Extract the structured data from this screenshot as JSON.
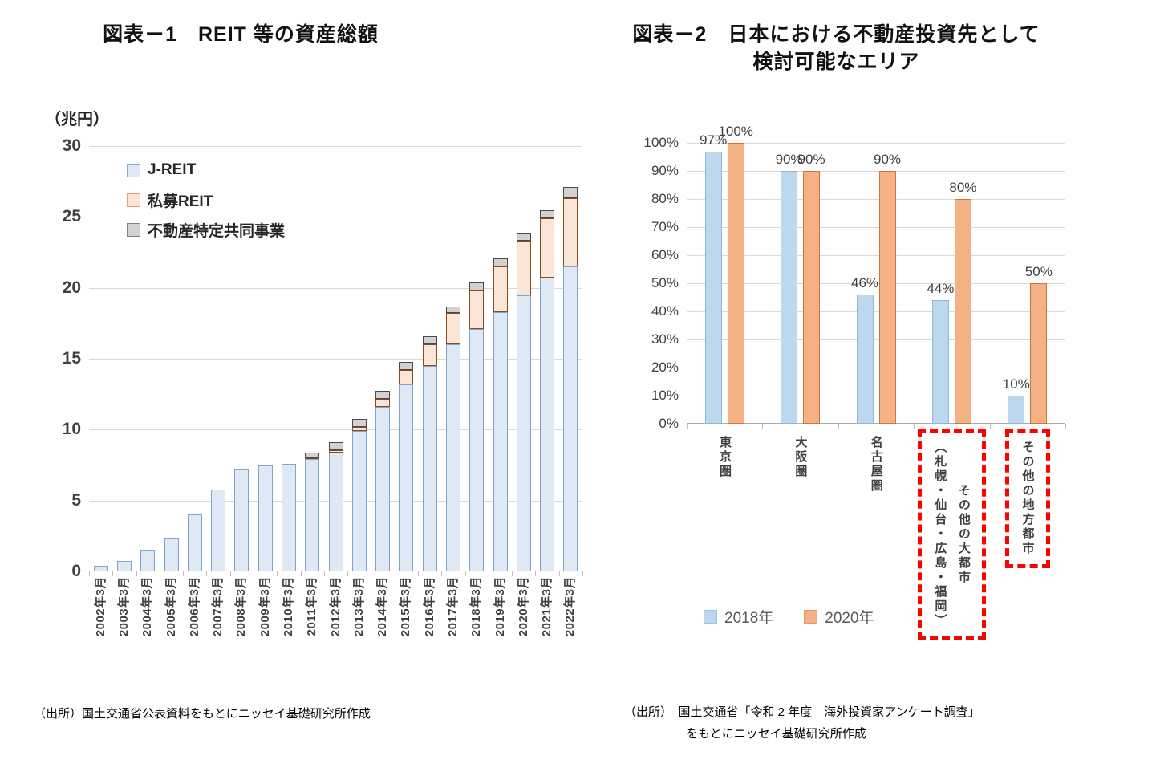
{
  "chart_data": [
    {
      "type": "bar",
      "stacked": true,
      "title": "図表－1　REIT 等の資産総額",
      "unit_label": "（兆円）",
      "categories": [
        "2002年3月",
        "2003年3月",
        "2004年3月",
        "2005年3月",
        "2006年3月",
        "2007年3月",
        "2008年3月",
        "2009年3月",
        "2010年3月",
        "2011年3月",
        "2012年3月",
        "2013年3月",
        "2014年3月",
        "2015年3月",
        "2016年3月",
        "2017年3月",
        "2018年3月",
        "2019年3月",
        "2020年3月",
        "2021年3月",
        "2022年3月"
      ],
      "series": [
        {
          "name": "J-REIT",
          "fill": "#DEE9F5",
          "border": "#7FA5CC",
          "legend_border": "#89A8CC",
          "values": [
            0.4,
            0.75,
            1.55,
            2.3,
            4.0,
            5.8,
            7.2,
            7.5,
            7.6,
            7.9,
            8.4,
            9.9,
            11.6,
            13.2,
            14.5,
            16.0,
            17.1,
            18.3,
            19.5,
            20.7,
            21.5
          ]
        },
        {
          "name": "私募REIT",
          "fill": "#FBE5D6",
          "border": "#8C4A1D",
          "legend_border": "#D9A077",
          "values": [
            0,
            0,
            0,
            0,
            0,
            0,
            0,
            0,
            0,
            0.1,
            0.15,
            0.3,
            0.55,
            1.0,
            1.5,
            2.2,
            2.7,
            3.2,
            3.8,
            4.2,
            4.8
          ]
        },
        {
          "name": "不動産特定共同事業",
          "fill": "#D2D2D2",
          "border": "#4A4A4A",
          "legend_border": "#7F7F7F",
          "values": [
            0,
            0,
            0,
            0,
            0,
            0,
            0,
            0,
            0,
            0.4,
            0.55,
            0.55,
            0.6,
            0.6,
            0.6,
            0.5,
            0.6,
            0.6,
            0.6,
            0.6,
            0.8
          ]
        }
      ],
      "ylim": [
        0,
        30
      ],
      "yticks": [
        0,
        5,
        10,
        15,
        20,
        25,
        30
      ],
      "grid": true,
      "legend_position": "top-left",
      "source": "（出所）国土交通省公表資料をもとにニッセイ基礎研究所作成"
    },
    {
      "type": "bar",
      "grouped": true,
      "title_lines": [
        "図表－2　日本における不動産投資先として",
        "検討可能なエリア"
      ],
      "categories": [
        {
          "lines": [
            "東京圏"
          ],
          "highlighted": false
        },
        {
          "lines": [
            "大阪圏"
          ],
          "highlighted": false
        },
        {
          "lines": [
            "名古屋圏"
          ],
          "highlighted": false
        },
        {
          "lines": [
            "（札幌・仙台・広島・福岡）",
            "その他の大都市"
          ],
          "highlighted": true
        },
        {
          "lines": [
            "その他の地方都市"
          ],
          "highlighted": true
        }
      ],
      "series": [
        {
          "name": "2018年",
          "fill": "#BDD7EE",
          "border": "#8FB8DC",
          "legend_border": "#9DC3E6",
          "values": [
            97,
            90,
            46,
            44,
            10
          ]
        },
        {
          "name": "2020年",
          "fill": "#F4B183",
          "border": "#D2733B",
          "legend_border": "#E8995F",
          "values": [
            100,
            90,
            90,
            80,
            50
          ]
        }
      ],
      "value_label_suffix": "%",
      "ylim": [
        0,
        100
      ],
      "ytick_step": 10,
      "ytick_suffix": "%",
      "grid": true,
      "legend_position": "bottom",
      "highlight_color": "#FF0000",
      "source_lines": [
        "（出所）　国土交通省「令和 2 年度　海外投資家アンケート調査」",
        "をもとにニッセイ基礎研究所作成"
      ]
    }
  ]
}
